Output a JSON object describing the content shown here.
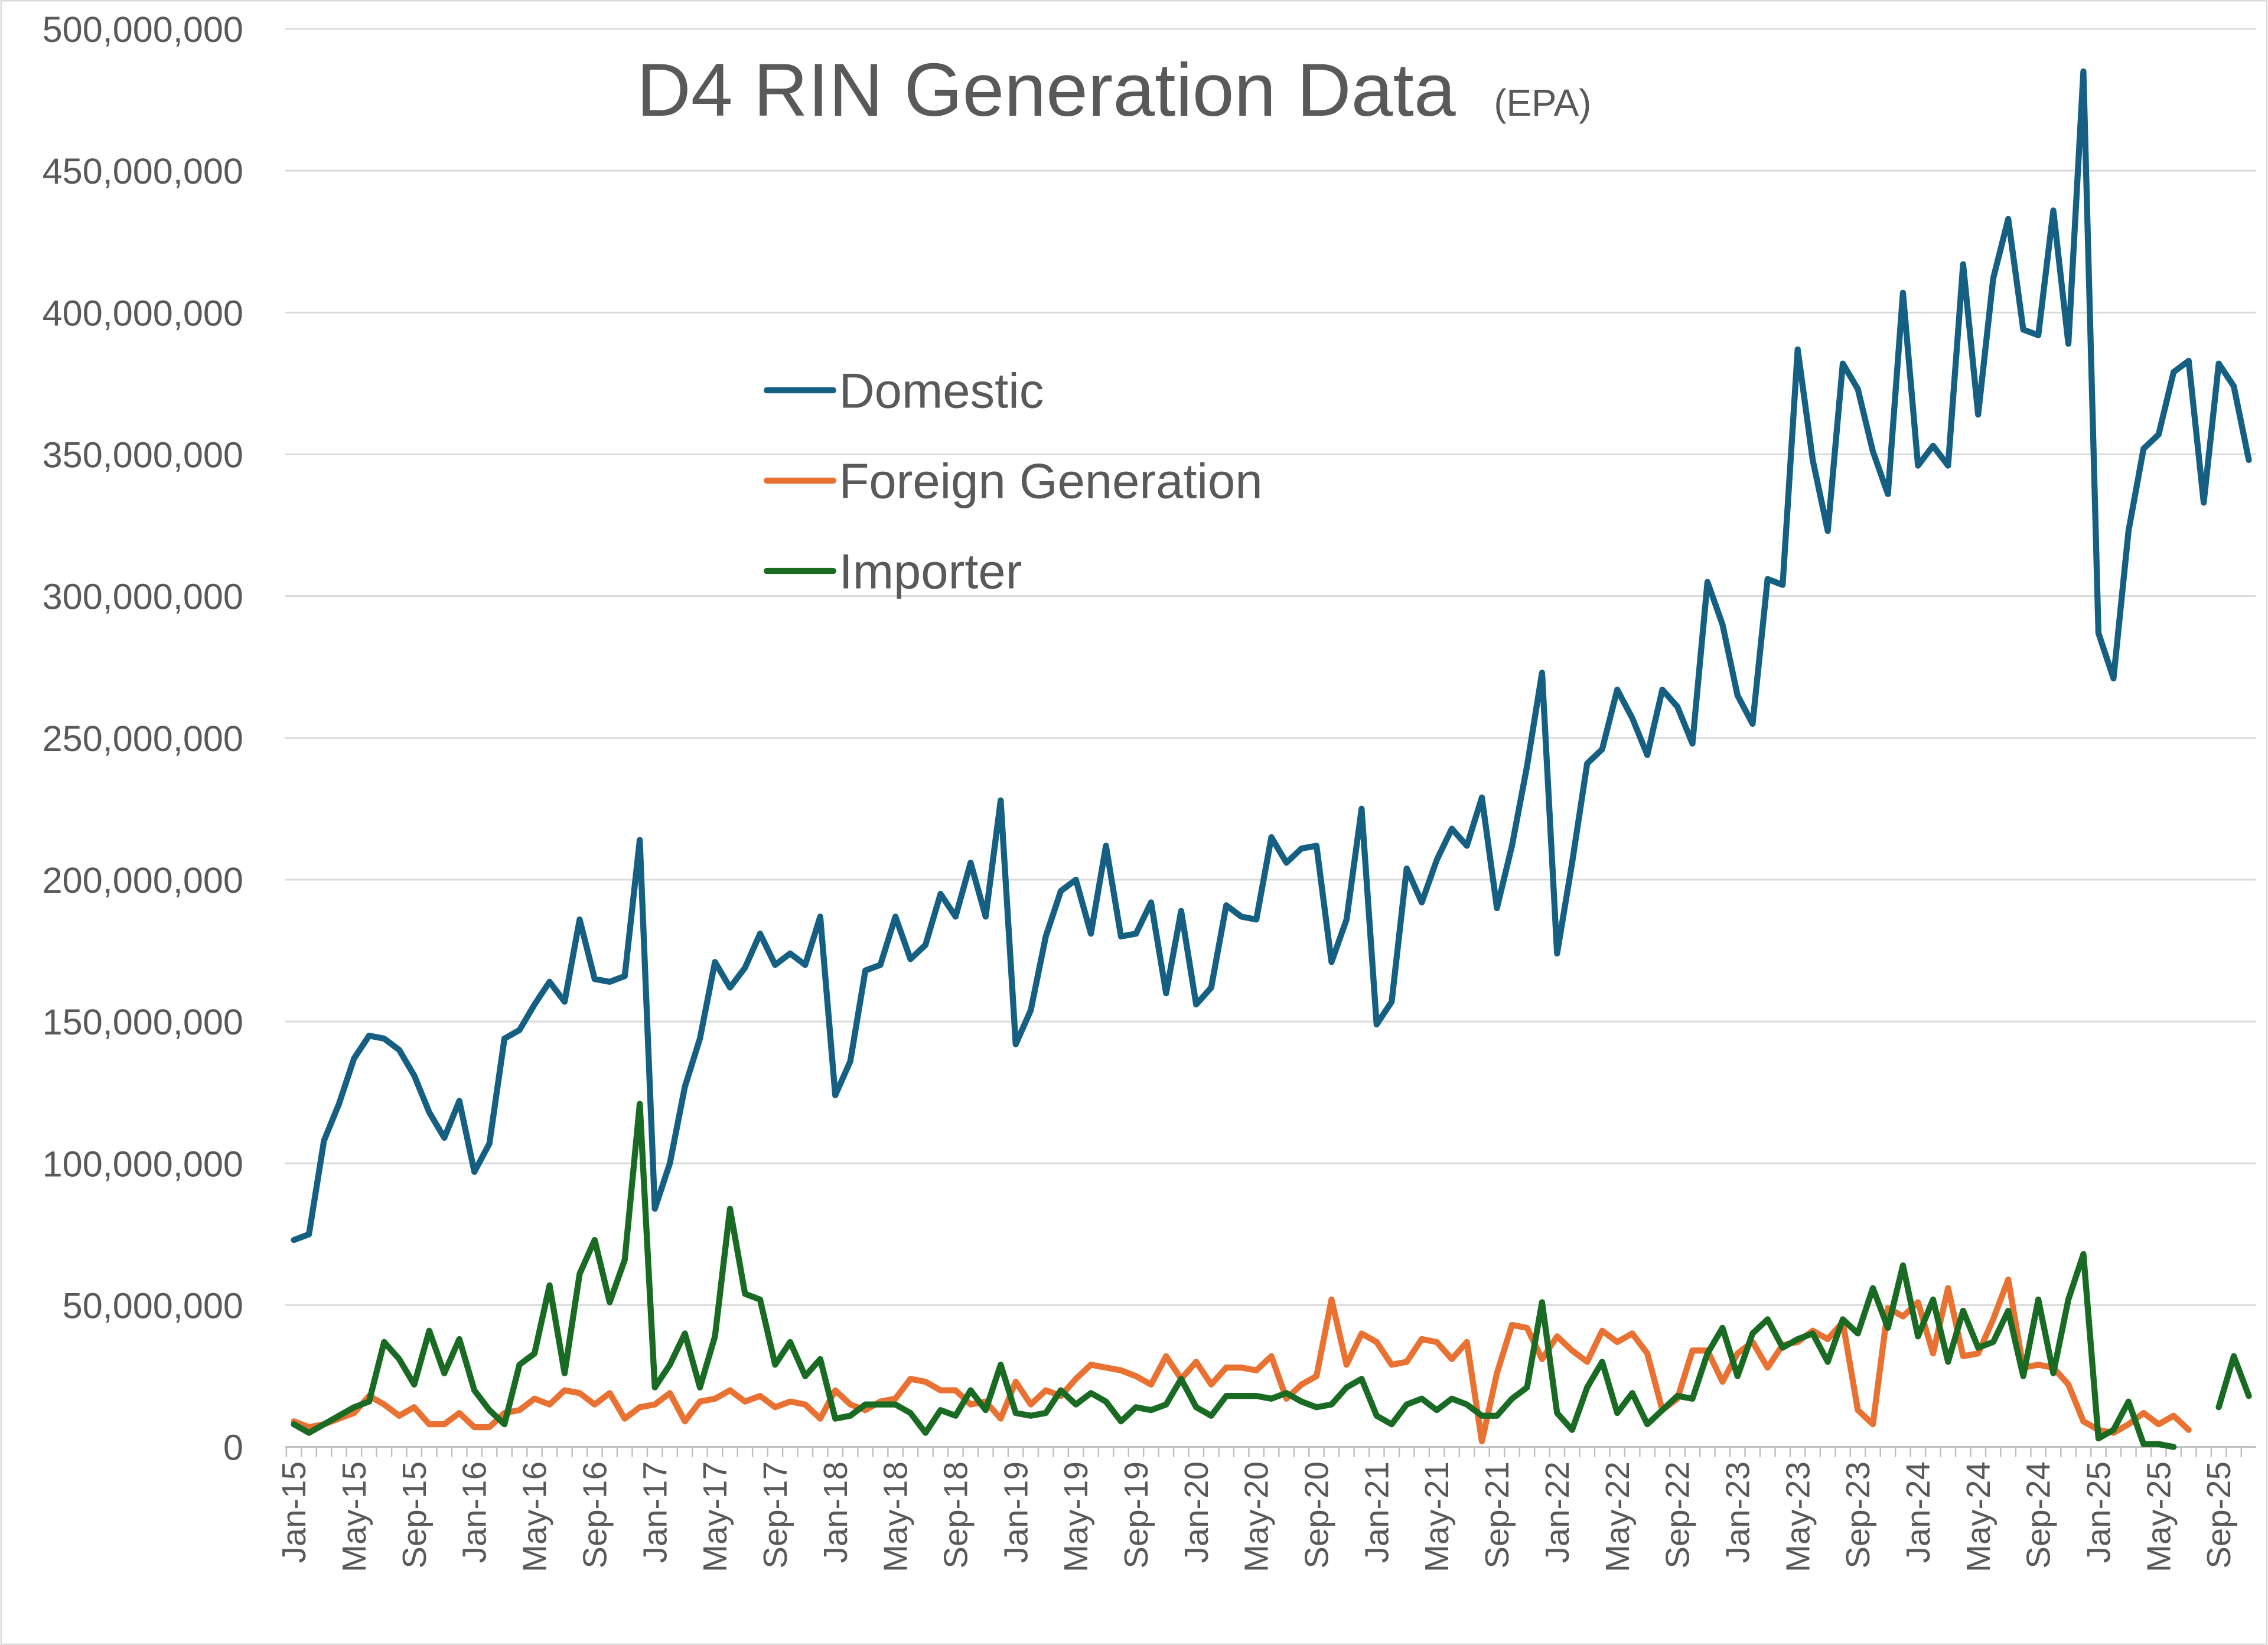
{
  "chart_data": {
    "type": "line",
    "title": "D4 RIN Generation Data",
    "title_note": "(EPA)",
    "xlabel": "",
    "ylabel": "",
    "ylim": [
      0,
      500000000
    ],
    "y_ticks": [
      0,
      50000000,
      100000000,
      150000000,
      200000000,
      250000000,
      300000000,
      350000000,
      400000000,
      450000000,
      500000000
    ],
    "y_tick_labels": [
      "0",
      "50,000,000",
      "100,000,000",
      "150,000,000",
      "200,000,000",
      "250,000,000",
      "300,000,000",
      "350,000,000",
      "400,000,000",
      "450,000,000",
      "500,000,000"
    ],
    "grid": true,
    "legend_position": "upper-left-center",
    "x": [
      "Jan-15",
      "Feb-15",
      "Mar-15",
      "Apr-15",
      "May-15",
      "Jun-15",
      "Jul-15",
      "Aug-15",
      "Sep-15",
      "Oct-15",
      "Nov-15",
      "Dec-15",
      "Jan-16",
      "Feb-16",
      "Mar-16",
      "Apr-16",
      "May-16",
      "Jun-16",
      "Jul-16",
      "Aug-16",
      "Sep-16",
      "Oct-16",
      "Nov-16",
      "Dec-16",
      "Jan-17",
      "Feb-17",
      "Mar-17",
      "Apr-17",
      "May-17",
      "Jun-17",
      "Jul-17",
      "Aug-17",
      "Sep-17",
      "Oct-17",
      "Nov-17",
      "Dec-17",
      "Jan-18",
      "Feb-18",
      "Mar-18",
      "Apr-18",
      "May-18",
      "Jun-18",
      "Jul-18",
      "Aug-18",
      "Sep-18",
      "Oct-18",
      "Nov-18",
      "Dec-18",
      "Jan-19",
      "Feb-19",
      "Mar-19",
      "Apr-19",
      "May-19",
      "Jun-19",
      "Jul-19",
      "Aug-19",
      "Sep-19",
      "Oct-19",
      "Nov-19",
      "Dec-19",
      "Jan-20",
      "Feb-20",
      "Mar-20",
      "Apr-20",
      "May-20",
      "Jun-20",
      "Jul-20",
      "Aug-20",
      "Sep-20",
      "Oct-20",
      "Nov-20",
      "Dec-20",
      "Jan-21",
      "Feb-21",
      "Mar-21",
      "Apr-21",
      "May-21",
      "Jun-21",
      "Jul-21",
      "Aug-21",
      "Sep-21",
      "Oct-21",
      "Nov-21",
      "Dec-21",
      "Jan-22",
      "Feb-22",
      "Mar-22",
      "Apr-22",
      "May-22",
      "Jun-22",
      "Jul-22",
      "Aug-22",
      "Sep-22",
      "Oct-22",
      "Nov-22",
      "Dec-22",
      "Jan-23",
      "Feb-23",
      "Mar-23",
      "Apr-23",
      "May-23",
      "Jun-23",
      "Jul-23",
      "Aug-23",
      "Sep-23",
      "Oct-23",
      "Nov-23",
      "Dec-23",
      "Jan-24",
      "Feb-24",
      "Mar-24",
      "Apr-24",
      "May-24",
      "Jun-24",
      "Jul-24",
      "Aug-24",
      "Sep-24",
      "Oct-24",
      "Nov-24",
      "Dec-24",
      "Jan-25",
      "Feb-25",
      "Mar-25",
      "Apr-25",
      "May-25",
      "Jun-25",
      "Jul-25",
      "Aug-25",
      "Sep-25",
      "Oct-25",
      "Nov-25"
    ],
    "x_tick_labels": [
      "Jan-15",
      "May-15",
      "Sep-15",
      "Jan-16",
      "May-16",
      "Sep-16",
      "Jan-17",
      "May-17",
      "Sep-17",
      "Jan-18",
      "May-18",
      "Sep-18",
      "Jan-19",
      "May-19",
      "Sep-19",
      "Jan-20",
      "May-20",
      "Sep-20",
      "Jan-21",
      "May-21",
      "Sep-21",
      "Jan-22",
      "May-22",
      "Sep-22",
      "Jan-23",
      "May-23",
      "Sep-23",
      "Jan-24",
      "May-24",
      "Sep-24",
      "Jan-25",
      "May-25",
      "Sep-25"
    ],
    "unit_multiplier": 1000000,
    "series": [
      {
        "name": "Domestic",
        "color": "#156082",
        "values": [
          73,
          75,
          108,
          121,
          137,
          145,
          144,
          140,
          131,
          118,
          109,
          122,
          97,
          107,
          144,
          147,
          156,
          164,
          157,
          186,
          165,
          164,
          166,
          214,
          84,
          100,
          127,
          144,
          171,
          162,
          169,
          181,
          170,
          174,
          170,
          187,
          124,
          136,
          168,
          170,
          187,
          172,
          177,
          195,
          187,
          206,
          187,
          228,
          142,
          154,
          180,
          196,
          200,
          181,
          212,
          180,
          181,
          192,
          160,
          189,
          156,
          162,
          191,
          187,
          186,
          215,
          206,
          211,
          212,
          171,
          186,
          225,
          149,
          157,
          204,
          192,
          207,
          218,
          212,
          229,
          190,
          212,
          240,
          273,
          174,
          206,
          241,
          246,
          267,
          257,
          244,
          267,
          261,
          248,
          305,
          290,
          265,
          255,
          306,
          304,
          387,
          348,
          323,
          382,
          373,
          351,
          336,
          407,
          346,
          353,
          346,
          417,
          364,
          412,
          433,
          394,
          392,
          436,
          389,
          485,
          287,
          271,
          323,
          352,
          357,
          379,
          383,
          333,
          382,
          374,
          348
        ]
      },
      {
        "name": "Foreign Generation",
        "color": "#E97132",
        "values": [
          9,
          7,
          8,
          10,
          12,
          18,
          15,
          11,
          14,
          8,
          8,
          12,
          7,
          7,
          12,
          13,
          17,
          15,
          20,
          19,
          15,
          19,
          10,
          14,
          15,
          19,
          9,
          16,
          17,
          20,
          16,
          18,
          14,
          16,
          15,
          10,
          20,
          15,
          13,
          16,
          17,
          24,
          23,
          20,
          20,
          15,
          16,
          10,
          23,
          15,
          20,
          18,
          24,
          29,
          28,
          27,
          25,
          22,
          32,
          24,
          30,
          22,
          28,
          28,
          27,
          32,
          17,
          22,
          25,
          52,
          29,
          40,
          37,
          29,
          30,
          38,
          37,
          31,
          37,
          2,
          26,
          43,
          42,
          31,
          39,
          34,
          30,
          41,
          37,
          40,
          33,
          13,
          17,
          34,
          34,
          23,
          33,
          37,
          28,
          36,
          37,
          41,
          38,
          44,
          13,
          8,
          49,
          46,
          51,
          33,
          56,
          32,
          33,
          45,
          59,
          28,
          29,
          28,
          22,
          9,
          6,
          5,
          8,
          12,
          8,
          11,
          6,
          null,
          null,
          null,
          null
        ]
      },
      {
        "name": "Importer",
        "color": "#196B24",
        "values": [
          8,
          5,
          8,
          11,
          14,
          16,
          37,
          31,
          22,
          41,
          26,
          38,
          20,
          13,
          8,
          29,
          33,
          57,
          26,
          61,
          73,
          51,
          66,
          121,
          21,
          29,
          40,
          21,
          39,
          84,
          54,
          52,
          29,
          37,
          25,
          31,
          10,
          11,
          15,
          15,
          15,
          12,
          5,
          13,
          11,
          20,
          13,
          29,
          12,
          11,
          12,
          20,
          15,
          19,
          16,
          9,
          14,
          13,
          15,
          24,
          14,
          11,
          18,
          18,
          18,
          17,
          19,
          16,
          14,
          15,
          21,
          24,
          11,
          8,
          15,
          17,
          13,
          17,
          15,
          11,
          11,
          17,
          21,
          51,
          12,
          6,
          21,
          30,
          12,
          19,
          8,
          13,
          18,
          17,
          33,
          42,
          25,
          40,
          45,
          35,
          38,
          40,
          30,
          45,
          40,
          56,
          42,
          64,
          39,
          52,
          30,
          48,
          35,
          37,
          48,
          25,
          52,
          26,
          52,
          68,
          3,
          6,
          16,
          1,
          1,
          0,
          null,
          null,
          14,
          32,
          18
        ]
      }
    ]
  }
}
